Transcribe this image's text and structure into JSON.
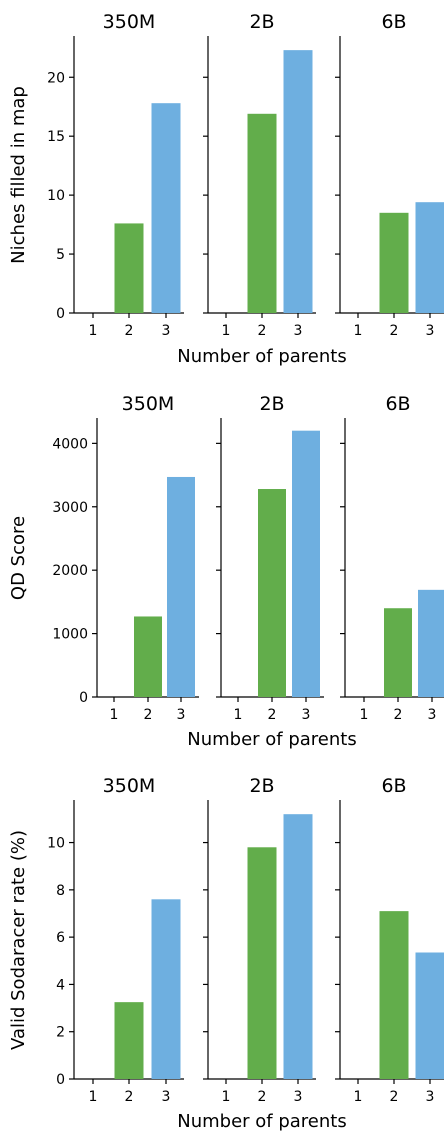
{
  "chart_data": [
    {
      "type": "bar",
      "ylabel": "Niches filled in map",
      "xlabel": "Number of parents",
      "categories": [
        "1",
        "2",
        "3"
      ],
      "colors": [
        "#62ad4b",
        "#62ad4b",
        "#6eafe0"
      ],
      "ylim": [
        0,
        23.5
      ],
      "yticks": [
        "0",
        "5",
        "10",
        "15",
        "20"
      ],
      "yticks_values": [
        0,
        5,
        10,
        15,
        20
      ],
      "panels": [
        {
          "title": "350M",
          "values": [
            0,
            7.6,
            17.8
          ]
        },
        {
          "title": "2B",
          "values": [
            0,
            16.9,
            22.3
          ]
        },
        {
          "title": "6B",
          "values": [
            0,
            8.5,
            9.4
          ]
        }
      ]
    },
    {
      "type": "bar",
      "ylabel": "QD Score",
      "xlabel": "Number of parents",
      "categories": [
        "1",
        "2",
        "3"
      ],
      "colors": [
        "#62ad4b",
        "#62ad4b",
        "#6eafe0"
      ],
      "ylim": [
        0,
        4400
      ],
      "yticks": [
        "0",
        "1000",
        "2000",
        "3000",
        "4000"
      ],
      "yticks_values": [
        0,
        1000,
        2000,
        3000,
        4000
      ],
      "panels": [
        {
          "title": "350M",
          "values": [
            0,
            1270,
            3470
          ]
        },
        {
          "title": "2B",
          "values": [
            0,
            3280,
            4200
          ]
        },
        {
          "title": "6B",
          "values": [
            0,
            1400,
            1690
          ]
        }
      ]
    },
    {
      "type": "bar",
      "ylabel": "Valid Sodaracer rate (%)",
      "xlabel": "Number of parents",
      "categories": [
        "1",
        "2",
        "3"
      ],
      "colors": [
        "#62ad4b",
        "#62ad4b",
        "#6eafe0"
      ],
      "ylim": [
        0,
        11.8
      ],
      "yticks": [
        "0",
        "2",
        "4",
        "6",
        "8",
        "10"
      ],
      "yticks_values": [
        0,
        2,
        4,
        6,
        8,
        10
      ],
      "panels": [
        {
          "title": "350M",
          "values": [
            0,
            3.25,
            7.6
          ]
        },
        {
          "title": "2B",
          "values": [
            0,
            9.8,
            11.2
          ]
        },
        {
          "title": "6B",
          "values": [
            0,
            7.1,
            5.35
          ]
        }
      ]
    }
  ]
}
